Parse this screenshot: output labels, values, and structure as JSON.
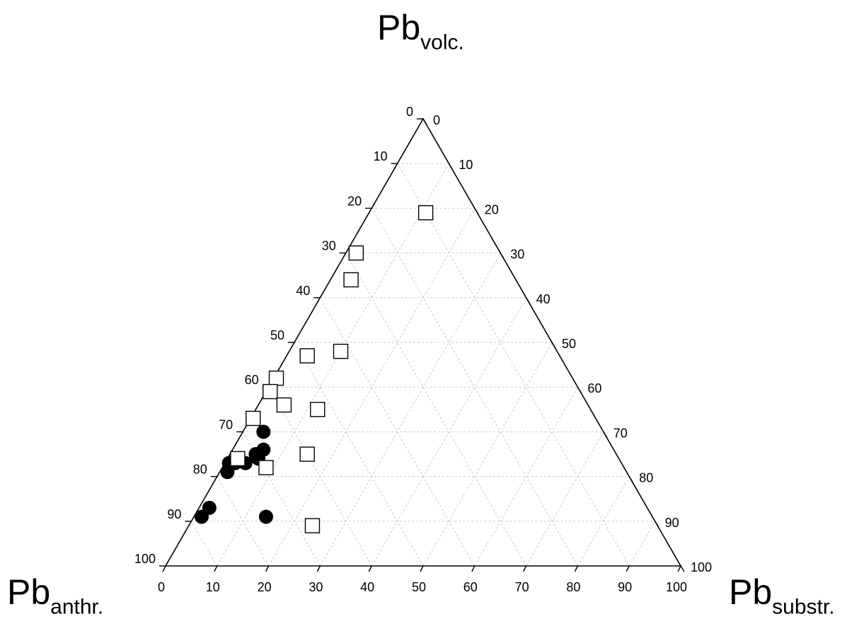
{
  "chart_data": {
    "type": "scatter",
    "subtype": "ternary",
    "vertices": {
      "top": {
        "base": "Pb",
        "subscript": "volc."
      },
      "left": {
        "base": "Pb",
        "subscript": "anthr."
      },
      "right": {
        "base": "Pb",
        "subscript": "substr."
      }
    },
    "ticks": {
      "bottom": [
        "0",
        "10",
        "20",
        "30",
        "40",
        "50",
        "60",
        "70",
        "80",
        "90",
        "100"
      ],
      "left": [
        "100",
        "90",
        "80",
        "70",
        "60",
        "50",
        "40",
        "30",
        "20",
        "10",
        "0"
      ],
      "right": [
        "0",
        "10",
        "20",
        "30",
        "40",
        "50",
        "60",
        "70",
        "80",
        "90",
        "100"
      ]
    },
    "grid": true,
    "grid_step": 10,
    "axis_range": [
      0,
      100
    ],
    "marker_styles": {
      "circle": "#000000",
      "square_fill": "#ffffff",
      "square_stroke": "#000000"
    },
    "series": [
      {
        "marker": "filled-circle",
        "points": [
          {
            "volc": 30,
            "substr": 4
          },
          {
            "volc": 26,
            "substr": 6
          },
          {
            "volc": 25,
            "substr": 5
          },
          {
            "volc": 24,
            "substr": 6
          },
          {
            "volc": 23,
            "substr": 4
          },
          {
            "volc": 23,
            "substr": 2
          },
          {
            "volc": 23,
            "substr": 0.8
          },
          {
            "volc": 21,
            "substr": 1.5
          },
          {
            "volc": 13,
            "substr": 2
          },
          {
            "volc": 11,
            "substr": 1.5
          },
          {
            "volc": 11,
            "substr": 14
          }
        ]
      },
      {
        "marker": "open-square",
        "points": [
          {
            "volc": 79,
            "substr": 11
          },
          {
            "volc": 70,
            "substr": 2
          },
          {
            "volc": 64,
            "substr": 4
          },
          {
            "volc": 47,
            "substr": 4
          },
          {
            "volc": 48,
            "substr": 10
          },
          {
            "volc": 42,
            "substr": 0.5
          },
          {
            "volc": 39,
            "substr": 0.8
          },
          {
            "volc": 36,
            "substr": 5
          },
          {
            "volc": 35,
            "substr": 12
          },
          {
            "volc": 33,
            "substr": 0.5
          },
          {
            "volc": 24,
            "substr": 2
          },
          {
            "volc": 22,
            "substr": 8.5
          },
          {
            "volc": 25,
            "substr": 15
          },
          {
            "volc": 9,
            "substr": 24
          }
        ]
      }
    ]
  }
}
